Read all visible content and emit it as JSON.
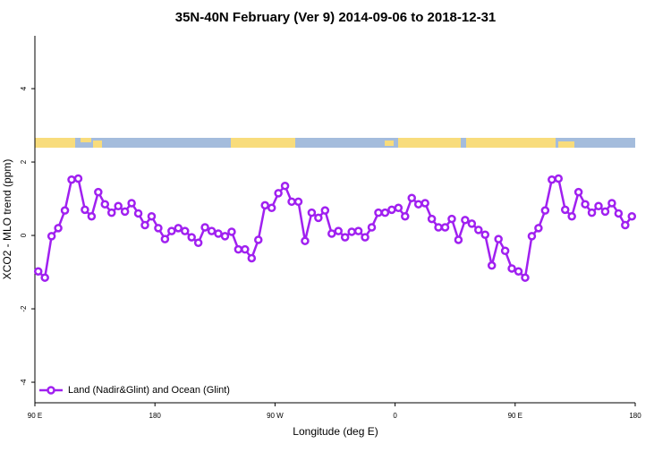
{
  "chart_data": {
    "type": "line",
    "title": "35N-40N February (Ver 9)   2014-09-06 to 2018-12-31",
    "x_label": "Longitude (deg E)",
    "y_label": "XCO2 - MLO trend (ppm)",
    "x": [
      92.5,
      97.5,
      102.5,
      107.5,
      112.5,
      117.5,
      122.5,
      127.5,
      132.5,
      137.5,
      142.5,
      147.5,
      152.5,
      157.5,
      162.5,
      167.5,
      172.5,
      177.5,
      182.5,
      187.5,
      192.5,
      197.5,
      202.5,
      207.5,
      212.5,
      217.5,
      222.5,
      227.5,
      232.5,
      237.5,
      242.5,
      247.5,
      252.5,
      257.5,
      262.5,
      267.5,
      272.5,
      277.5,
      282.5,
      287.5,
      292.5,
      297.5,
      302.5,
      307.5,
      312.5,
      317.5,
      322.5,
      327.5,
      332.5,
      337.5,
      342.5,
      347.5,
      352.5,
      357.5,
      362.5,
      367.5,
      372.5,
      377.5,
      382.5,
      387.5,
      392.5,
      397.5,
      402.5,
      407.5,
      412.5,
      417.5,
      422.5,
      427.5,
      432.5,
      437.5,
      442.5,
      447.5,
      452.5,
      457.5,
      462.5,
      467.5,
      472.5,
      477.5,
      482.5,
      487.5,
      492.5,
      497.5,
      502.5,
      507.5,
      512.5,
      517.5,
      522.5,
      527.5,
      532.5,
      537.5
    ],
    "series": [
      {
        "name": "Land (Nadir&Glint) and Ocean (Glint)",
        "color": "#a020f0",
        "values": [
          -0.98,
          -1.15,
          -0.02,
          0.2,
          0.68,
          1.52,
          1.55,
          0.7,
          0.52,
          1.18,
          0.85,
          0.62,
          0.8,
          0.65,
          0.88,
          0.6,
          0.28,
          0.52,
          0.2,
          -0.1,
          0.12,
          0.2,
          0.12,
          -0.05,
          -0.2,
          0.22,
          0.12,
          0.05,
          -0.02,
          0.1,
          -0.38,
          -0.38,
          -0.62,
          -0.12,
          0.82,
          0.75,
          1.15,
          1.35,
          0.92,
          0.92,
          -0.15,
          0.62,
          0.48,
          0.68,
          0.05,
          0.12,
          -0.05,
          0.1,
          0.12,
          -0.05,
          0.22,
          0.62,
          0.62,
          0.7,
          0.75,
          0.52,
          1.02,
          0.85,
          0.88,
          0.45,
          0.22,
          0.22,
          0.45,
          -0.12,
          0.42,
          0.32,
          0.15,
          0.02,
          -0.82,
          -0.1,
          -0.42,
          -0.9,
          -0.98,
          -1.15,
          -0.02,
          0.2,
          0.68,
          1.52,
          1.55,
          0.7,
          0.52,
          1.18,
          0.85,
          0.62,
          0.8,
          0.65,
          0.88,
          0.6,
          0.28,
          0.52
        ]
      }
    ],
    "xlim": [
      90,
      540
    ],
    "xticks": [
      {
        "value": 90,
        "label": "90 E"
      },
      180,
      {
        "value": 270,
        "label": "90 W"
      },
      {
        "value": 360,
        "label": "0"
      },
      {
        "value": 450,
        "label": "90 E"
      },
      {
        "value": 540,
        "label": "180"
      }
    ],
    "ylim": [
      -4.56,
      5.44
    ],
    "yticks": [
      -4,
      -2,
      0,
      2,
      4
    ],
    "legend": "bottom-left"
  }
}
